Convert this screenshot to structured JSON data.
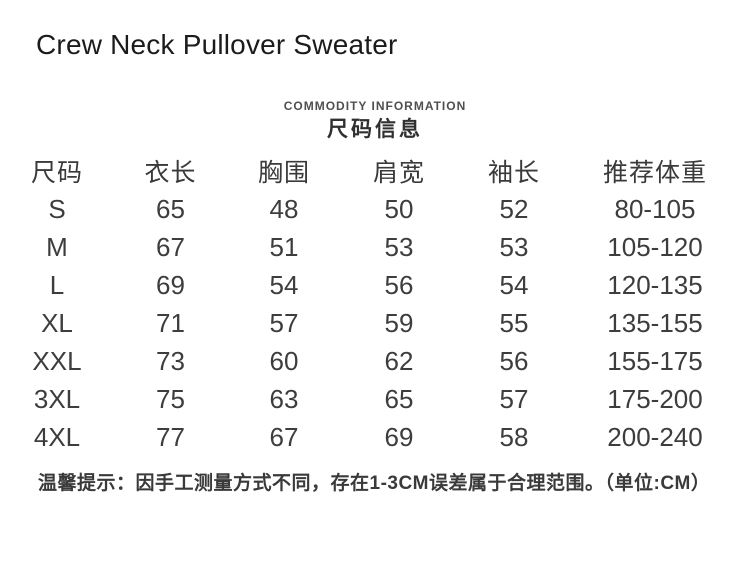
{
  "page": {
    "title": "Crew Neck Pullover Sweater"
  },
  "section_header": {
    "en": "COMMODITY INFORMATION",
    "cn": "尺码信息"
  },
  "size_table": {
    "headers": [
      "尺码",
      "衣长",
      "胸围",
      "肩宽",
      "袖长",
      "推荐体重"
    ],
    "rows": [
      {
        "size": "S",
        "length": "65",
        "bust": "48",
        "shoulder": "50",
        "sleeve": "52",
        "weight": "80-105"
      },
      {
        "size": "M",
        "length": "67",
        "bust": "51",
        "shoulder": "53",
        "sleeve": "53",
        "weight": "105-120"
      },
      {
        "size": "L",
        "length": "69",
        "bust": "54",
        "shoulder": "56",
        "sleeve": "54",
        "weight": "120-135"
      },
      {
        "size": "XL",
        "length": "71",
        "bust": "57",
        "shoulder": "59",
        "sleeve": "55",
        "weight": "135-155"
      },
      {
        "size": "XXL",
        "length": "73",
        "bust": "60",
        "shoulder": "62",
        "sleeve": "56",
        "weight": "155-175"
      },
      {
        "size": "3XL",
        "length": "75",
        "bust": "63",
        "shoulder": "65",
        "sleeve": "57",
        "weight": "175-200"
      },
      {
        "size": "4XL",
        "length": "77",
        "bust": "67",
        "shoulder": "69",
        "sleeve": "58",
        "weight": "200-240"
      }
    ]
  },
  "footer": {
    "note": "温馨提示：因手工测量方式不同，存在1-3CM误差属于合理范围。（单位:CM）"
  },
  "colors": {
    "background": "#ffffff",
    "text_title": "#1b1b1b",
    "text_subtitle_en": "#4f4f4f",
    "text_subtitle_cn": "#303030",
    "text_table": "#3d3d3d",
    "text_footer": "#3a3a3a"
  }
}
